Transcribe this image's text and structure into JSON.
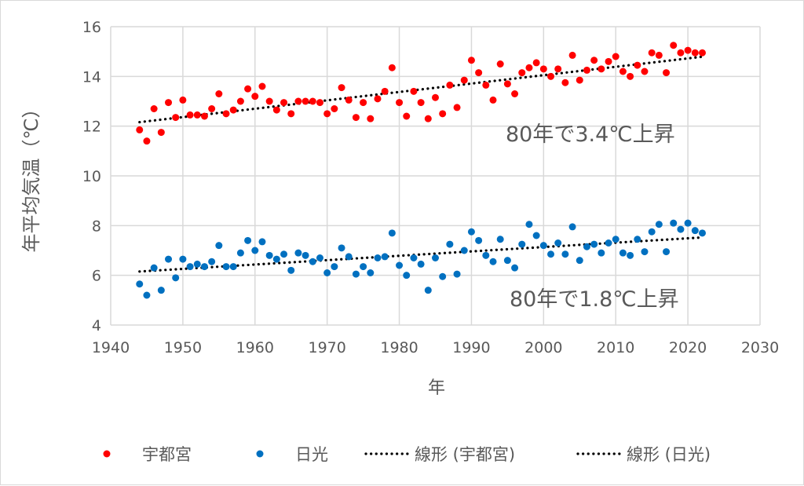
{
  "chart_data": {
    "type": "scatter",
    "xlabel": "年",
    "ylabel": "年平均気温（℃）",
    "xlim": [
      1940,
      2030
    ],
    "ylim": [
      4,
      16
    ],
    "xticks": [
      1940,
      1950,
      1960,
      1970,
      1980,
      1990,
      2000,
      2010,
      2020,
      2030
    ],
    "yticks": [
      4,
      6,
      8,
      10,
      12,
      14,
      16
    ],
    "grid": true,
    "legend_position": "bottom",
    "x_start": 1944,
    "series": [
      {
        "name": "宇都宮",
        "color": "#ff0000",
        "values": [
          11.85,
          11.4,
          12.7,
          11.75,
          12.95,
          12.35,
          13.05,
          12.45,
          12.45,
          12.4,
          12.7,
          13.3,
          12.5,
          12.65,
          13.0,
          13.5,
          13.2,
          13.6,
          13.0,
          12.65,
          12.95,
          12.5,
          13.0,
          13.0,
          13.0,
          12.95,
          12.5,
          12.7,
          13.55,
          13.05,
          12.35,
          12.95,
          12.3,
          13.1,
          13.4,
          14.35,
          12.95,
          12.4,
          13.4,
          12.95,
          12.3,
          13.15,
          12.5,
          13.65,
          12.75,
          13.85,
          14.65,
          14.15,
          13.65,
          13.05,
          14.5,
          13.7,
          13.3,
          14.15,
          14.35,
          14.55,
          14.3,
          14.0,
          14.3,
          13.75,
          14.85,
          13.85,
          14.25,
          14.65,
          14.3,
          14.6,
          14.8,
          14.2,
          14.0,
          14.45,
          14.2,
          14.95,
          14.85,
          14.15,
          15.25,
          14.95,
          15.05,
          14.95,
          14.95
        ]
      },
      {
        "name": "日光",
        "color": "#0070c0",
        "values": [
          5.65,
          5.2,
          6.3,
          5.4,
          6.65,
          5.9,
          6.65,
          6.35,
          6.45,
          6.35,
          6.55,
          7.2,
          6.35,
          6.35,
          6.9,
          7.4,
          7.0,
          7.35,
          6.8,
          6.65,
          6.85,
          6.2,
          6.9,
          6.8,
          6.55,
          6.7,
          6.1,
          6.35,
          7.1,
          6.75,
          6.05,
          6.35,
          6.1,
          6.7,
          6.75,
          7.7,
          6.4,
          6.0,
          6.7,
          6.45,
          5.4,
          6.7,
          5.95,
          7.25,
          6.05,
          7.0,
          7.75,
          7.4,
          6.8,
          6.55,
          7.45,
          6.6,
          6.3,
          7.25,
          8.05,
          7.6,
          7.2,
          6.85,
          7.3,
          6.85,
          7.95,
          6.6,
          7.15,
          7.25,
          6.9,
          7.3,
          7.45,
          6.9,
          6.8,
          7.45,
          6.95,
          7.75,
          8.05,
          6.95,
          8.1,
          7.85,
          8.1,
          7.8,
          7.7
        ]
      }
    ],
    "trendlines": [
      {
        "name": "線形 (宇都宮)",
        "of": "宇都宮",
        "color": "#000000"
      },
      {
        "name": "線形 (日光)",
        "of": "日光",
        "color": "#000000"
      }
    ],
    "annotations": [
      "80年で3.4℃上昇",
      "80年で1.8℃上昇"
    ]
  }
}
